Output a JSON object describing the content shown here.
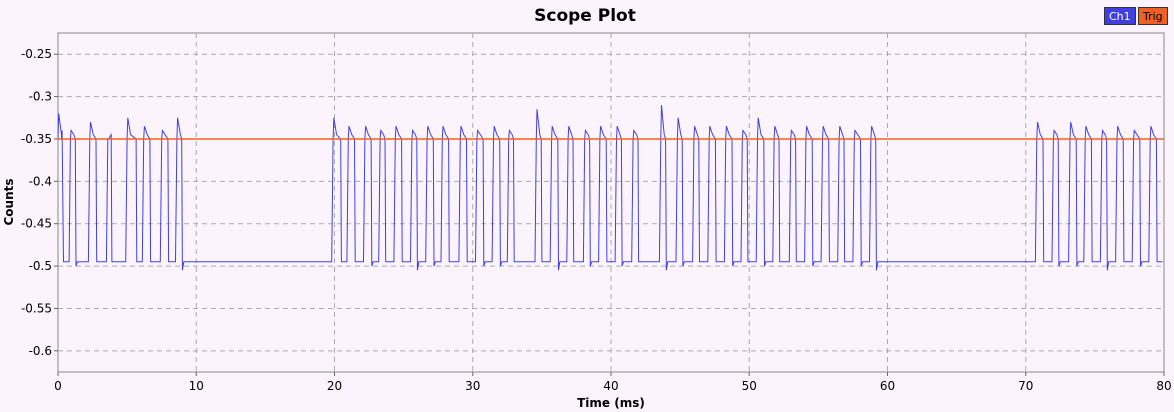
{
  "chart_data": {
    "type": "line",
    "title": "Scope Plot",
    "xlabel": "Time (ms)",
    "ylabel": "Counts",
    "xlim": [
      0,
      80
    ],
    "ylim": [
      -0.625,
      -0.225
    ],
    "xticks": [
      0,
      10,
      20,
      30,
      40,
      50,
      60,
      70,
      80
    ],
    "xtick_labels": [
      "0",
      "10",
      "20",
      "30",
      "40",
      "50",
      "60",
      "70",
      "80"
    ],
    "yticks": [
      -0.25,
      -0.3,
      -0.35,
      -0.4,
      -0.45,
      -0.5,
      -0.55,
      -0.6
    ],
    "ytick_labels": [
      "-0.25",
      "-0.3",
      "-0.35",
      "-0.4",
      "-0.45",
      "-0.5",
      "-0.55",
      "-0.6"
    ],
    "grid": true,
    "legend_position": "top-right",
    "series": [
      {
        "name": "Ch1",
        "color": "#4040e0",
        "description_free": true,
        "high": -0.35,
        "low": -0.495,
        "pulses": [
          [
            0.0,
            0.3,
            -0.32,
            -0.34
          ],
          [
            0.9,
            1.3,
            -0.34,
            -0.5
          ],
          [
            2.3,
            2.8,
            -0.33,
            -0.495
          ],
          [
            3.6,
            3.9,
            -0.35,
            -0.495
          ],
          [
            5.0,
            5.7,
            -0.325,
            -0.495
          ],
          [
            6.2,
            6.7,
            -0.335,
            -0.495
          ],
          [
            7.5,
            8.0,
            -0.34,
            -0.495
          ],
          [
            8.6,
            9.0,
            -0.325,
            -0.505
          ],
          [
            19.9,
            20.5,
            -0.325,
            -0.495
          ],
          [
            21.0,
            21.5,
            -0.335,
            -0.495
          ],
          [
            22.2,
            22.7,
            -0.335,
            -0.5
          ],
          [
            23.3,
            23.7,
            -0.34,
            -0.495
          ],
          [
            24.4,
            24.9,
            -0.335,
            -0.495
          ],
          [
            25.6,
            26.0,
            -0.34,
            -0.505
          ],
          [
            26.7,
            27.2,
            -0.335,
            -0.5
          ],
          [
            27.8,
            28.3,
            -0.335,
            -0.495
          ],
          [
            29.1,
            29.6,
            -0.335,
            -0.495
          ],
          [
            30.3,
            30.8,
            -0.34,
            -0.5
          ],
          [
            31.5,
            32.0,
            -0.335,
            -0.5
          ],
          [
            32.6,
            33.0,
            -0.34,
            -0.495
          ],
          [
            34.6,
            35.0,
            -0.315,
            -0.495
          ],
          [
            35.7,
            36.2,
            -0.335,
            -0.505
          ],
          [
            36.9,
            37.3,
            -0.335,
            -0.495
          ],
          [
            38.1,
            38.5,
            -0.34,
            -0.5
          ],
          [
            39.2,
            39.7,
            -0.335,
            -0.495
          ],
          [
            40.4,
            40.8,
            -0.335,
            -0.5
          ],
          [
            41.6,
            42.0,
            -0.34,
            -0.495
          ],
          [
            43.6,
            44.0,
            -0.31,
            -0.505
          ],
          [
            44.8,
            45.2,
            -0.325,
            -0.5
          ],
          [
            46.0,
            46.4,
            -0.335,
            -0.495
          ],
          [
            47.1,
            47.6,
            -0.335,
            -0.495
          ],
          [
            48.3,
            48.8,
            -0.335,
            -0.5
          ],
          [
            49.5,
            49.9,
            -0.34,
            -0.495
          ],
          [
            50.6,
            51.1,
            -0.325,
            -0.5
          ],
          [
            51.8,
            52.2,
            -0.335,
            -0.495
          ],
          [
            53.0,
            53.4,
            -0.34,
            -0.495
          ],
          [
            54.1,
            54.6,
            -0.335,
            -0.5
          ],
          [
            55.3,
            55.8,
            -0.335,
            -0.495
          ],
          [
            56.5,
            56.9,
            -0.335,
            -0.495
          ],
          [
            57.6,
            58.1,
            -0.34,
            -0.5
          ],
          [
            58.8,
            59.2,
            -0.335,
            -0.505
          ],
          [
            70.8,
            71.3,
            -0.33,
            -0.495
          ],
          [
            72.0,
            72.4,
            -0.34,
            -0.5
          ],
          [
            73.2,
            73.7,
            -0.33,
            -0.5
          ],
          [
            74.3,
            74.8,
            -0.335,
            -0.495
          ],
          [
            75.5,
            75.9,
            -0.34,
            -0.505
          ],
          [
            76.6,
            77.1,
            -0.335,
            -0.495
          ],
          [
            77.8,
            78.3,
            -0.34,
            -0.5
          ],
          [
            79.0,
            79.5,
            -0.335,
            -0.495
          ]
        ],
        "gaps": [
          [
            9.0,
            19.9
          ],
          [
            59.2,
            70.8
          ]
        ],
        "gap_level": -0.495
      },
      {
        "name": "Trig",
        "color": "#f06020",
        "x": [
          0,
          80
        ],
        "y": [
          -0.35,
          -0.35
        ]
      }
    ]
  }
}
